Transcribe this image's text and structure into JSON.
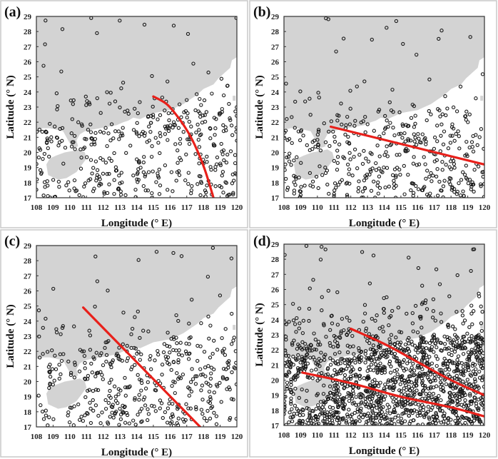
{
  "figure": {
    "description": "Four-panel scatter maps of points over South China coast with red trend lines"
  },
  "chart_data": [
    {
      "type": "scatter",
      "panel_label": "(a)",
      "xlabel": "Longitude (° E)",
      "ylabel": "Latitude (° N)",
      "xlim": [
        108,
        120
      ],
      "ylim": [
        17,
        29
      ],
      "xticks": [
        "108",
        "109",
        "110",
        "111",
        "112",
        "113",
        "114",
        "115",
        "116",
        "117",
        "118",
        "119",
        "120"
      ],
      "yticks": [
        "17",
        "18",
        "19",
        "20",
        "21",
        "22",
        "23",
        "24",
        "25",
        "26",
        "27",
        "28",
        "29"
      ],
      "grid": false,
      "background": "land mask (gray) over sea (white)",
      "point_density": "moderate",
      "point_seed": 11,
      "point_count": 430,
      "trend_lines": [
        {
          "name": "trend-a",
          "color": "#e8201a",
          "points": [
            [
              115.0,
              23.7
            ],
            [
              115.8,
              23.2
            ],
            [
              116.5,
              22.3
            ],
            [
              117.1,
              21.3
            ],
            [
              117.6,
              20.2
            ],
            [
              118.1,
              18.8
            ],
            [
              118.6,
              17.0
            ]
          ]
        }
      ]
    },
    {
      "type": "scatter",
      "panel_label": "(b)",
      "xlabel": "Longitude (° E)",
      "ylabel": "Latitude (° N)",
      "xlim": [
        108,
        120
      ],
      "ylim": [
        17,
        29
      ],
      "xticks": [
        "108",
        "109",
        "110",
        "111",
        "112",
        "113",
        "114",
        "115",
        "116",
        "117",
        "118",
        "119",
        "120"
      ],
      "yticks": [
        "17",
        "18",
        "19",
        "20",
        "21",
        "22",
        "23",
        "24",
        "25",
        "26",
        "27",
        "28",
        "29"
      ],
      "grid": false,
      "point_density": "moderate",
      "point_seed": 23,
      "point_count": 430,
      "trend_lines": [
        {
          "name": "trend-b",
          "color": "#e8201a",
          "points": [
            [
              110.8,
              21.7
            ],
            [
              120.0,
              19.2
            ]
          ]
        }
      ]
    },
    {
      "type": "scatter",
      "panel_label": "(c)",
      "xlabel": "Longitude (° E)",
      "ylabel": "Latitude (° N)",
      "xlim": [
        108,
        120
      ],
      "ylim": [
        17,
        29
      ],
      "xticks": [
        "108",
        "109",
        "110",
        "111",
        "112",
        "113",
        "114",
        "115",
        "116",
        "117",
        "118",
        "119",
        "120"
      ],
      "yticks": [
        "17",
        "18",
        "19",
        "20",
        "21",
        "22",
        "23",
        "24",
        "25",
        "26",
        "27",
        "28",
        "29"
      ],
      "grid": false,
      "point_density": "moderate",
      "point_seed": 37,
      "point_count": 430,
      "trend_lines": [
        {
          "name": "trend-c",
          "color": "#e8201a",
          "points": [
            [
              110.8,
              24.9
            ],
            [
              117.8,
              17.0
            ]
          ]
        }
      ]
    },
    {
      "type": "scatter",
      "panel_label": "(d)",
      "xlabel": "Longitude (° E)",
      "ylabel": "Latitude (° N)",
      "xlim": [
        108,
        120
      ],
      "ylim": [
        17,
        29
      ],
      "xticks": [
        "108",
        "109",
        "110",
        "111",
        "112",
        "113",
        "114",
        "115",
        "116",
        "117",
        "118",
        "119",
        "120"
      ],
      "yticks": [
        "17",
        "18",
        "19",
        "20",
        "21",
        "22",
        "23",
        "24",
        "25",
        "26",
        "27",
        "28",
        "29"
      ],
      "grid": false,
      "point_density": "high",
      "point_seed": 51,
      "point_count": 1500,
      "trend_lines": [
        {
          "name": "trend-d-upper",
          "color": "#e8201a",
          "points": [
            [
              112.0,
              23.4
            ],
            [
              114.0,
              22.4
            ],
            [
              116.0,
              21.2
            ],
            [
              118.0,
              20.0
            ],
            [
              120.0,
              19.0
            ]
          ]
        },
        {
          "name": "trend-d-lower",
          "color": "#e8201a",
          "points": [
            [
              109.1,
              20.5
            ],
            [
              112.0,
              19.8
            ],
            [
              115.0,
              18.9
            ],
            [
              118.0,
              18.2
            ],
            [
              120.0,
              17.6
            ]
          ]
        }
      ]
    }
  ]
}
